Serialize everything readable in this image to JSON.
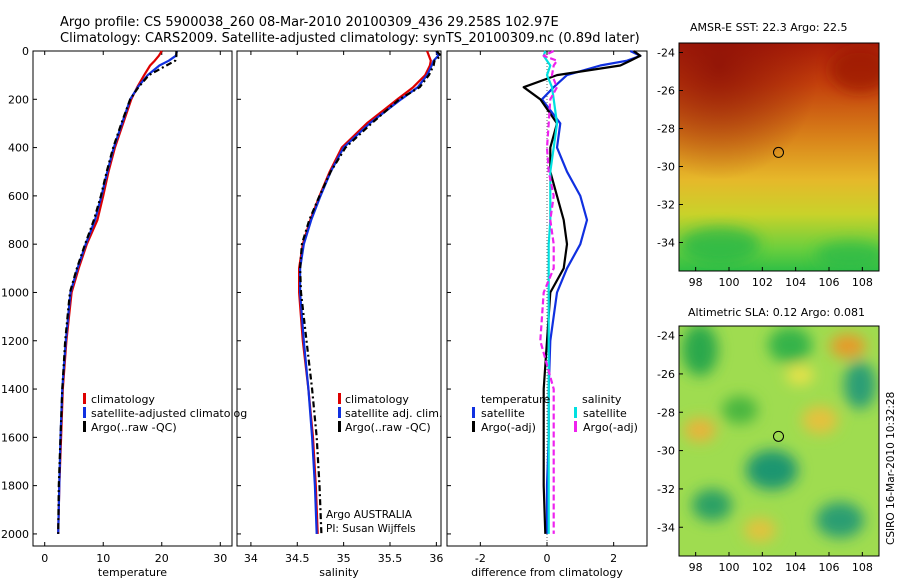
{
  "page": {
    "title_line1": "Argo profile: CS 5900038_260 08-Mar-2010 20100309_436 29.258S 102.97E",
    "title_line2": "Climatology: CARS2009. Satellite-adjusted climatology: synTS_20100309.nc (0.89d later)",
    "credit_vertical": "CSIRO 16-Mar-2010 10:32:28",
    "note_line1": "Argo AUSTRALIA",
    "note_line2": "PI: Susan Wijffels"
  },
  "colors": {
    "climatology": "#dd0000",
    "satellite": "#1030e0",
    "argo": "#000000",
    "salinity_satellite": "#00e0e0",
    "salinity_argo": "#ee22ee"
  },
  "chart_data": [
    {
      "id": "temperature",
      "type": "line",
      "xlabel": "temperature",
      "ylabel": "",
      "xlim": [
        -2,
        32
      ],
      "ylim": [
        2050,
        0
      ],
      "xticks": [
        0,
        10,
        20,
        30
      ],
      "yticks": [
        0,
        200,
        400,
        600,
        800,
        1000,
        1200,
        1400,
        1600,
        1800,
        2000
      ],
      "depth": [
        0,
        20,
        40,
        60,
        100,
        150,
        200,
        300,
        400,
        500,
        600,
        700,
        800,
        900,
        1000,
        1200,
        1400,
        1600,
        1800,
        2000
      ],
      "series": [
        {
          "name": "climatology",
          "values": [
            20.0,
            19.5,
            18.8,
            18.0,
            17.0,
            15.8,
            14.8,
            13.4,
            12.0,
            10.9,
            10.0,
            9.0,
            7.2,
            5.8,
            4.6,
            3.7,
            3.1,
            2.8,
            2.5,
            2.3
          ]
        },
        {
          "name": "satellite-adjusted climatology",
          "values": [
            22.6,
            22.4,
            21.2,
            19.6,
            17.6,
            15.9,
            14.6,
            13.2,
            11.8,
            10.7,
            9.7,
            8.6,
            7.0,
            5.6,
            4.4,
            3.6,
            3.0,
            2.7,
            2.5,
            2.3
          ]
        },
        {
          "name": "Argo(..raw -QC)",
          "values": [
            22.5,
            22.5,
            22.3,
            20.8,
            17.8,
            16.0,
            14.6,
            13.1,
            11.7,
            10.6,
            9.6,
            8.4,
            6.9,
            5.5,
            4.3,
            3.5,
            3.0,
            2.7,
            2.4,
            2.3
          ]
        }
      ],
      "legend": [
        "climatology",
        "satellite-adjusted climatolog",
        "Argo(..raw -QC)"
      ]
    },
    {
      "id": "salinity",
      "type": "line",
      "xlabel": "salinity",
      "ylabel": "",
      "xlim": [
        33.85,
        36.05
      ],
      "ylim": [
        2050,
        0
      ],
      "xticks": [
        34,
        34.5,
        35,
        35.5,
        36
      ],
      "depth": [
        0,
        20,
        40,
        60,
        100,
        150,
        200,
        300,
        400,
        500,
        600,
        700,
        800,
        900,
        1000,
        1200,
        1400,
        1600,
        1800,
        2000
      ],
      "series": [
        {
          "name": "climatology",
          "values": [
            35.9,
            35.92,
            35.94,
            35.93,
            35.88,
            35.75,
            35.58,
            35.25,
            34.98,
            34.85,
            34.74,
            34.64,
            34.56,
            34.52,
            34.52,
            34.56,
            34.62,
            34.67,
            34.7,
            34.72
          ]
        },
        {
          "name": "satellite adj. clim.",
          "values": [
            36.0,
            36.02,
            35.97,
            35.95,
            35.9,
            35.8,
            35.62,
            35.28,
            35.0,
            34.86,
            34.75,
            34.65,
            34.57,
            34.53,
            34.53,
            34.57,
            34.62,
            34.66,
            34.69,
            34.71
          ]
        },
        {
          "name": "Argo(..raw -QC)",
          "values": [
            36.0,
            36.05,
            35.98,
            35.97,
            35.92,
            35.82,
            35.6,
            35.3,
            35.02,
            34.86,
            34.74,
            34.63,
            34.55,
            34.53,
            34.54,
            34.6,
            34.66,
            34.71,
            34.74,
            34.76
          ]
        }
      ],
      "legend": [
        "climatology",
        "satellite adj. clim.",
        "Argo(..raw -QC)"
      ]
    },
    {
      "id": "difference",
      "type": "line",
      "xlabel": "difference from climatology",
      "ylabel": "",
      "xlim": [
        -3,
        3
      ],
      "ylim": [
        2050,
        0
      ],
      "xticks": [
        -2,
        0,
        2
      ],
      "depth": [
        0,
        20,
        40,
        60,
        100,
        150,
        200,
        300,
        400,
        500,
        600,
        700,
        800,
        900,
        1000,
        1200,
        1400,
        1600,
        1800,
        2000
      ],
      "series": [
        {
          "name": "temperature satellite",
          "values": [
            2.5,
            2.8,
            2.4,
            1.6,
            0.6,
            0.2,
            -0.15,
            0.4,
            0.3,
            0.6,
            1.0,
            1.2,
            1.0,
            0.6,
            0.3,
            0.1,
            0.05,
            0.05,
            0.0,
            0.0
          ]
        },
        {
          "name": "temperature Argo(-adj)",
          "values": [
            2.6,
            2.8,
            2.5,
            2.2,
            0.3,
            -0.7,
            -0.2,
            0.3,
            0.1,
            0.1,
            0.3,
            0.5,
            0.6,
            0.5,
            0.1,
            0.0,
            -0.1,
            -0.1,
            -0.1,
            -0.05
          ]
        },
        {
          "name": "salinity satellite",
          "values": [
            -0.05,
            -0.1,
            0.0,
            0.1,
            0.0,
            0.15,
            0.2,
            0.3,
            0.2,
            0.1,
            0.1,
            0.1,
            0.05,
            0.05,
            0.05,
            0.05,
            0.05,
            0.05,
            0.05,
            0.05
          ]
        },
        {
          "name": "salinity Argo(-adj)",
          "values": [
            0.2,
            -0.1,
            0.3,
            0.2,
            0.15,
            0.3,
            0.1,
            0.05,
            0.0,
            0.05,
            0.2,
            0.1,
            0.2,
            0.2,
            -0.1,
            -0.2,
            0.2,
            0.2,
            0.2,
            0.2
          ]
        }
      ],
      "legend_temperature_title": "temperature",
      "legend_salinity_title": "salinity",
      "legend": [
        "satellite",
        "Argo(-adj)",
        "satellite",
        "Argo(-adj)"
      ]
    },
    {
      "id": "sst_map",
      "type": "heatmap",
      "title": "AMSR-E SST: 22.3 Argo: 22.5",
      "xlim": [
        97,
        109
      ],
      "ylim": [
        -35.5,
        -23.5
      ],
      "xticks": [
        98,
        100,
        102,
        104,
        106,
        108
      ],
      "yticks": [
        -24,
        -26,
        -28,
        -30,
        -32,
        -34
      ],
      "marker": {
        "lon": 102.97,
        "lat": -29.258
      }
    },
    {
      "id": "sla_map",
      "type": "heatmap",
      "title": "Altimetric SLA: 0.12 Argo: 0.081",
      "xlim": [
        97,
        109
      ],
      "ylim": [
        -35.5,
        -23.5
      ],
      "xticks": [
        98,
        100,
        102,
        104,
        106,
        108
      ],
      "yticks": [
        -24,
        -26,
        -28,
        -30,
        -32,
        -34
      ],
      "marker": {
        "lon": 102.97,
        "lat": -29.258
      }
    }
  ]
}
